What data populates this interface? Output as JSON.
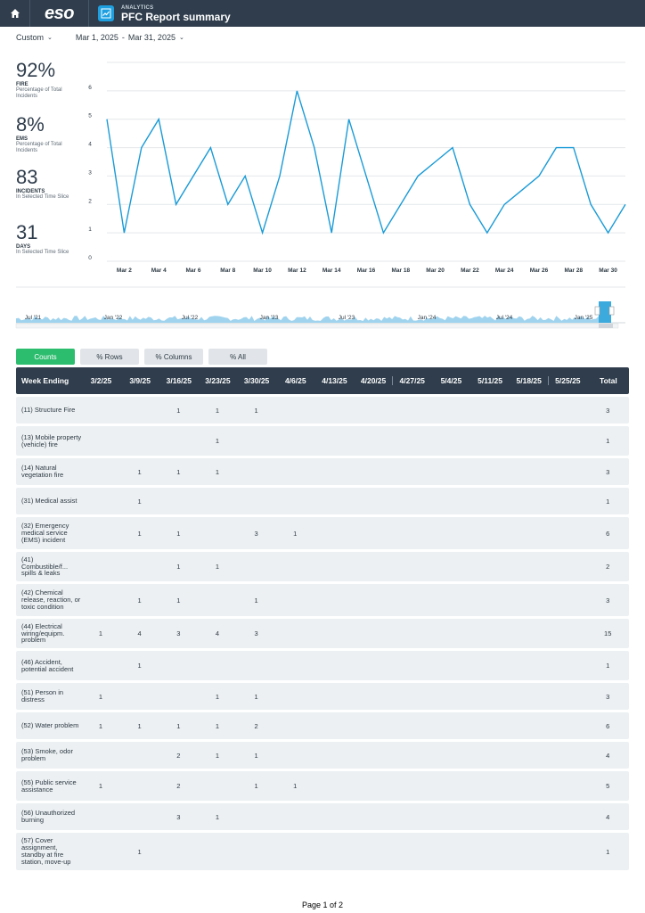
{
  "header": {
    "subtitle": "ANALYTICS",
    "title": "PFC Report summary",
    "logo": "eso",
    "home_icon": "home-icon",
    "app_icon": "chart-icon"
  },
  "filters": {
    "range_type": "Custom",
    "start": "Mar 1, 2025",
    "separator": "-",
    "end": "Mar 31, 2025"
  },
  "kpis": [
    {
      "value": "92%",
      "label": "FIRE",
      "desc": "Percentage of Total Incidents"
    },
    {
      "value": "8%",
      "label": "EMS",
      "desc": "Percentage of Total Incidents"
    },
    {
      "value": "83",
      "label": "INCIDENTS",
      "desc": "In Selected Time Slice"
    },
    {
      "value": "31",
      "label": "DAYS",
      "desc": "In Selected Time Slice"
    }
  ],
  "chart_data": {
    "type": "line",
    "x": [
      "Mar 1",
      "Mar 2",
      "Mar 3",
      "Mar 4",
      "Mar 5",
      "Mar 6",
      "Mar 7",
      "Mar 8",
      "Mar 9",
      "Mar 10",
      "Mar 11",
      "Mar 12",
      "Mar 13",
      "Mar 14",
      "Mar 15",
      "Mar 16",
      "Mar 17",
      "Mar 18",
      "Mar 19",
      "Mar 20",
      "Mar 21",
      "Mar 22",
      "Mar 23",
      "Mar 24",
      "Mar 25",
      "Mar 26",
      "Mar 27",
      "Mar 28",
      "Mar 29",
      "Mar 30",
      "Mar 31"
    ],
    "values": [
      5,
      1,
      4,
      5,
      2,
      3,
      4,
      2,
      3,
      1,
      3,
      6,
      4,
      1,
      5,
      3,
      1,
      2,
      3,
      3.5,
      4,
      2,
      1,
      2,
      2.5,
      3,
      4,
      4,
      2,
      1,
      2
    ],
    "x_tick_labels": [
      "Mar 2",
      "Mar 4",
      "Mar 6",
      "Mar 8",
      "Mar 10",
      "Mar 12",
      "Mar 14",
      "Mar 16",
      "Mar 18",
      "Mar 20",
      "Mar 22",
      "Mar 24",
      "Mar 26",
      "Mar 28",
      "Mar 30"
    ],
    "y_ticks": [
      0,
      1,
      2,
      3,
      4,
      5,
      6
    ],
    "ylim": [
      0,
      7
    ],
    "grid": true,
    "color": "#1a9bd7",
    "navigator_labels": [
      "Jul '21",
      "Jan '22",
      "Jul '22",
      "Jan '23",
      "Jul '23",
      "Jan '24",
      "Jul '24",
      "Jan '25"
    ],
    "navigator_color": "#9fd3ee"
  },
  "tabs": [
    {
      "label": "Counts",
      "active": true
    },
    {
      "label": "% Rows",
      "active": false
    },
    {
      "label": "% Columns",
      "active": false
    },
    {
      "label": "% All",
      "active": false
    }
  ],
  "table": {
    "columns": [
      "Week Ending",
      "3/2/25",
      "3/9/25",
      "3/16/25",
      "3/23/25",
      "3/30/25",
      "4/6/25",
      "4/13/25",
      "4/20/25",
      "4/27/25",
      "5/4/25",
      "5/11/25",
      "5/18/25",
      "5/25/25",
      "Total"
    ],
    "rows": [
      {
        "label": "(11) Structure Fire",
        "cells": [
          "",
          "",
          "1",
          "1",
          "1",
          "",
          "",
          "",
          "",
          "",
          "",
          "",
          ""
        ],
        "total": "3"
      },
      {
        "label": "(13) Mobile property (vehicle) fire",
        "cells": [
          "",
          "",
          "",
          "1",
          "",
          "",
          "",
          "",
          "",
          "",
          "",
          "",
          ""
        ],
        "total": "1"
      },
      {
        "label": "(14) Natural vegetation fire",
        "cells": [
          "",
          "1",
          "1",
          "1",
          "",
          "",
          "",
          "",
          "",
          "",
          "",
          "",
          ""
        ],
        "total": "3"
      },
      {
        "label": "(31) Medical assist",
        "cells": [
          "",
          "1",
          "",
          "",
          "",
          "",
          "",
          "",
          "",
          "",
          "",
          "",
          ""
        ],
        "total": "1"
      },
      {
        "label": "(32) Emergency medical service (EMS) incident",
        "cells": [
          "",
          "1",
          "1",
          "",
          "3",
          "1",
          "",
          "",
          "",
          "",
          "",
          "",
          ""
        ],
        "total": "6"
      },
      {
        "label": "(41) Combustible/f... spills & leaks",
        "cells": [
          "",
          "",
          "1",
          "1",
          "",
          "",
          "",
          "",
          "",
          "",
          "",
          "",
          ""
        ],
        "total": "2"
      },
      {
        "label": "(42) Chemical release, reaction, or toxic condition",
        "cells": [
          "",
          "1",
          "1",
          "",
          "1",
          "",
          "",
          "",
          "",
          "",
          "",
          "",
          ""
        ],
        "total": "3"
      },
      {
        "label": "(44) Electrical wiring/equipm. problem",
        "cells": [
          "1",
          "4",
          "3",
          "4",
          "3",
          "",
          "",
          "",
          "",
          "",
          "",
          "",
          ""
        ],
        "total": "15"
      },
      {
        "label": "(46) Accident, potential accident",
        "cells": [
          "",
          "1",
          "",
          "",
          "",
          "",
          "",
          "",
          "",
          "",
          "",
          "",
          ""
        ],
        "total": "1"
      },
      {
        "label": "(51) Person in distress",
        "cells": [
          "1",
          "",
          "",
          "1",
          "1",
          "",
          "",
          "",
          "",
          "",
          "",
          "",
          ""
        ],
        "total": "3"
      },
      {
        "label": "(52) Water problem",
        "cells": [
          "1",
          "1",
          "1",
          "1",
          "2",
          "",
          "",
          "",
          "",
          "",
          "",
          "",
          ""
        ],
        "total": "6"
      },
      {
        "label": "(53) Smoke, odor problem",
        "cells": [
          "",
          "",
          "2",
          "1",
          "1",
          "",
          "",
          "",
          "",
          "",
          "",
          "",
          ""
        ],
        "total": "4"
      },
      {
        "label": "(55) Public service assistance",
        "cells": [
          "1",
          "",
          "2",
          "",
          "1",
          "1",
          "",
          "",
          "",
          "",
          "",
          "",
          ""
        ],
        "total": "5"
      },
      {
        "label": "(56) Unauthorized burning",
        "cells": [
          "",
          "",
          "3",
          "1",
          "",
          "",
          "",
          "",
          "",
          "",
          "",
          "",
          ""
        ],
        "total": "4"
      },
      {
        "label": "(57) Cover assignment, standby at fire station, move-up",
        "cells": [
          "",
          "1",
          "",
          "",
          "",
          "",
          "",
          "",
          "",
          "",
          "",
          "",
          ""
        ],
        "total": "1"
      }
    ]
  },
  "footer": {
    "text": "Page 1 of 2"
  }
}
